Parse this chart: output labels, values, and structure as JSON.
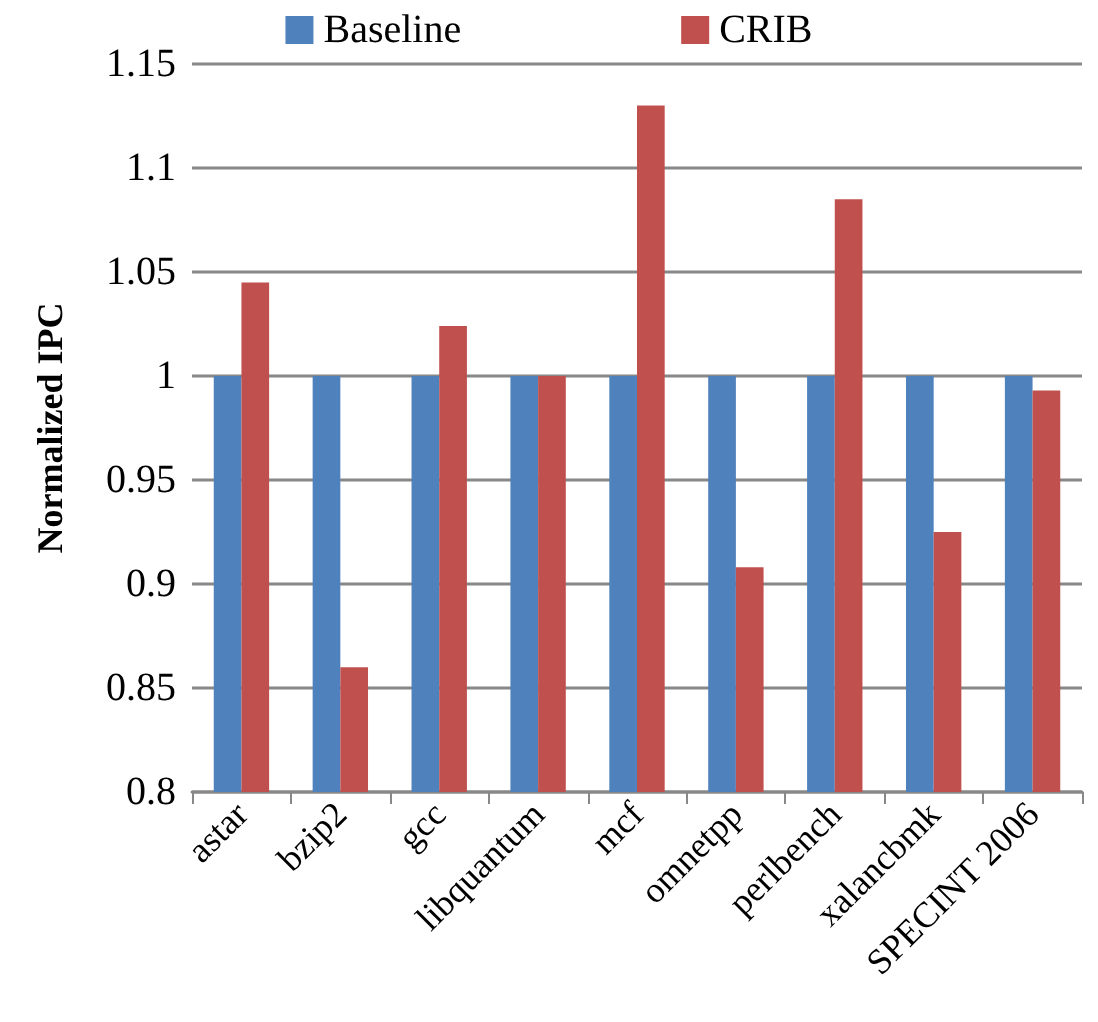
{
  "chart_data": {
    "type": "bar",
    "ylabel": "Normalized IPC",
    "categories": [
      "astar",
      "bzip2",
      "gcc",
      "libquantum",
      "mcf",
      "omnetpp",
      "perlbench",
      "xalancbmk",
      "SPECINT 2006"
    ],
    "series": [
      {
        "name": "Baseline",
        "color": "#4f81bd",
        "values": [
          1,
          1,
          1,
          1,
          1,
          1,
          1,
          1,
          1
        ]
      },
      {
        "name": "CRIB",
        "color": "#c0504d",
        "values": [
          1.045,
          0.86,
          1.024,
          1.0,
          1.13,
          0.908,
          1.085,
          0.925,
          0.993
        ]
      }
    ],
    "ylim": [
      0.8,
      1.15
    ],
    "yticks": [
      0.8,
      0.85,
      0.9,
      0.95,
      1,
      1.05,
      1.1,
      1.15
    ],
    "grid": "y",
    "legend": "top"
  }
}
